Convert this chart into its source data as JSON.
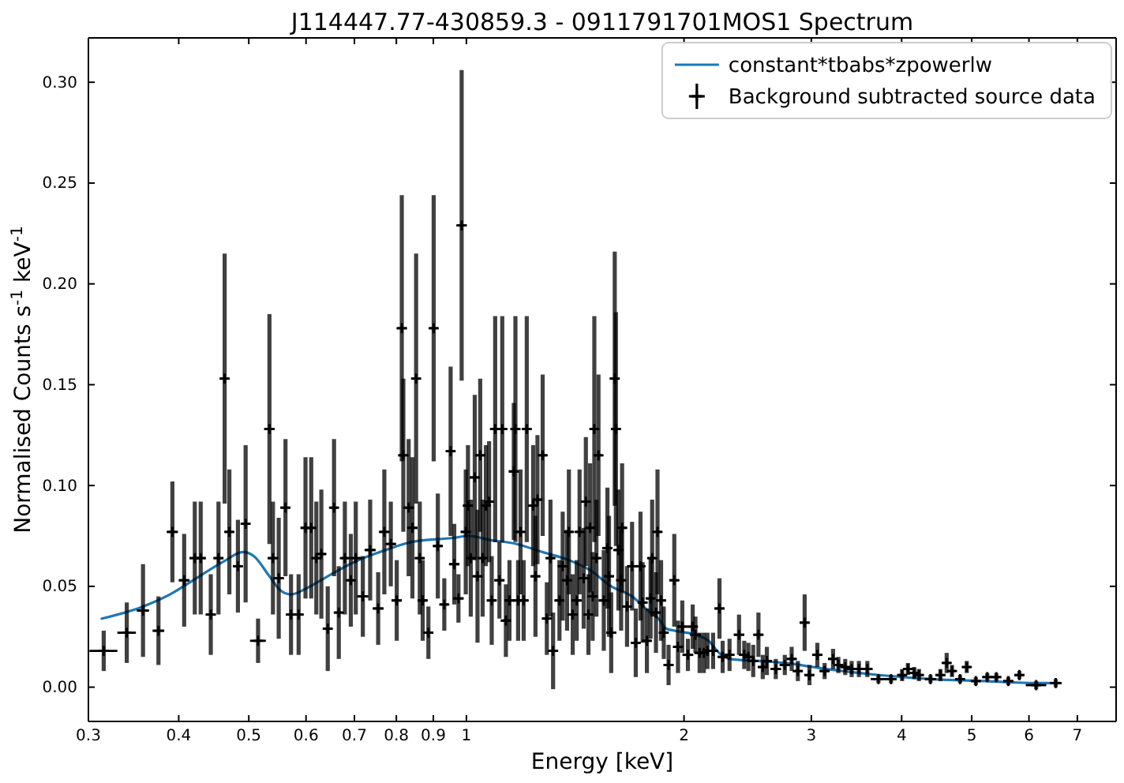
{
  "chart_data": {
    "type": "scatter",
    "title": "J114447.77-430859.3 - 0911791701MOS1 Spectrum",
    "xlabel": "Energy [keV]",
    "ylabel": "Normalised Counts s$^{-1}$ keV$^{-1}$",
    "log": "x",
    "xlim": [
      0.3,
      7.92
    ],
    "xticks": [
      0.3,
      0.4,
      0.5,
      0.6,
      0.7,
      0.8,
      0.9,
      1,
      2,
      3,
      4,
      5,
      6,
      7
    ],
    "ylim": [
      -0.017,
      0.322
    ],
    "yticks": [
      {
        "value": 0,
        "label": "0.00"
      },
      0.05,
      {
        "value": 0.1,
        "label": "0.10"
      },
      0.15,
      {
        "value": 0.2,
        "label": "0.20"
      },
      0.25,
      {
        "value": 0.3,
        "label": "0.30"
      }
    ],
    "legend": "top right",
    "series": [
      {
        "name": "constant*tbabs*zpowerlw",
        "type": "line",
        "color": "#1f77b4",
        "marker": "none",
        "line_style": "solid",
        "x": [
          0.313,
          0.357,
          0.389,
          0.423,
          0.46,
          0.491,
          0.508,
          0.534,
          0.553,
          0.572,
          0.601,
          0.643,
          0.699,
          0.773,
          0.84,
          0.957,
          1.009,
          1.078,
          1.173,
          1.275,
          1.386,
          1.483,
          1.586,
          1.695,
          1.783,
          1.843,
          1.891,
          1.939,
          2.074,
          2.162,
          2.236,
          2.312,
          2.535,
          2.757,
          3.151,
          3.724,
          4.4,
          5.21,
          6.16,
          6.64
        ],
        "values": [
          0.034,
          0.04,
          0.046,
          0.054,
          0.062,
          0.067,
          0.065,
          0.055,
          0.048,
          0.046,
          0.049,
          0.055,
          0.062,
          0.068,
          0.072,
          0.074,
          0.075,
          0.073,
          0.071,
          0.067,
          0.063,
          0.058,
          0.05,
          0.045,
          0.038,
          0.034,
          0.029,
          0.028,
          0.026,
          0.023,
          0.017,
          0.014,
          0.013,
          0.012,
          0.009,
          0.006,
          0.004,
          0.003,
          0.002,
          0.002
        ]
      },
      {
        "name": "Background subtracted source data",
        "type": "scatter",
        "color": "#000000",
        "marker": "cross",
        "x": [
          0.315,
          0.339,
          0.357,
          0.375,
          0.392,
          0.407,
          0.421,
          0.429,
          0.443,
          0.454,
          0.463,
          0.47,
          0.483,
          0.495,
          0.515,
          0.534,
          0.54,
          0.55,
          0.562,
          0.572,
          0.586,
          0.599,
          0.61,
          0.62,
          0.63,
          0.643,
          0.656,
          0.666,
          0.679,
          0.692,
          0.703,
          0.719,
          0.736,
          0.755,
          0.77,
          0.786,
          0.801,
          0.814,
          0.818,
          0.832,
          0.842,
          0.852,
          0.862,
          0.87,
          0.886,
          0.901,
          0.913,
          0.932,
          0.951,
          0.962,
          0.975,
          0.985,
          0.998,
          1.005,
          1.014,
          1.027,
          1.036,
          1.045,
          1.053,
          1.064,
          1.075,
          1.084,
          1.096,
          1.111,
          1.121,
          1.134,
          1.147,
          1.163,
          1.169,
          1.179,
          1.188,
          1.2,
          1.212,
          1.237,
          1.246,
          1.254,
          1.275,
          1.292,
          1.307,
          1.318,
          1.345,
          1.359,
          1.378,
          1.386,
          1.403,
          1.421,
          1.434,
          1.453,
          1.463,
          1.475,
          1.483,
          1.495,
          1.503,
          1.513,
          1.523,
          1.549,
          1.567,
          1.575,
          1.586,
          1.604,
          1.61,
          1.623,
          1.637,
          1.642,
          1.668,
          1.695,
          1.715,
          1.741,
          1.753,
          1.777,
          1.798,
          1.807,
          1.829,
          1.838,
          1.859,
          1.875,
          1.904,
          1.939,
          1.962,
          1.989,
          2.025,
          2.056,
          2.074,
          2.102,
          2.13,
          2.155,
          2.194,
          2.239,
          2.262,
          2.312,
          2.383,
          2.423,
          2.455,
          2.493,
          2.535,
          2.57,
          2.604,
          2.679,
          2.757,
          2.818,
          2.874,
          2.937,
          2.982,
          3.058,
          3.13,
          3.215,
          3.27,
          3.342,
          3.411,
          3.491,
          3.586,
          3.715,
          3.867,
          4.006,
          4.081,
          4.164,
          4.227,
          4.385,
          4.526,
          4.617,
          4.696,
          4.818,
          4.922,
          5.066,
          5.254,
          5.408,
          5.618,
          5.82,
          6.14,
          6.534
        ],
        "values": [
          0.018,
          0.027,
          0.038,
          0.028,
          0.077,
          0.053,
          0.064,
          0.064,
          0.036,
          0.064,
          0.153,
          0.077,
          0.06,
          0.081,
          0.023,
          0.128,
          0.064,
          0.054,
          0.089,
          0.036,
          0.036,
          0.079,
          0.079,
          0.064,
          0.066,
          0.029,
          0.089,
          0.037,
          0.064,
          0.053,
          0.064,
          0.045,
          0.068,
          0.039,
          0.077,
          0.071,
          0.043,
          0.178,
          0.115,
          0.089,
          0.079,
          0.153,
          0.064,
          0.043,
          0.027,
          0.178,
          0.07,
          0.041,
          0.117,
          0.061,
          0.044,
          0.229,
          0.077,
          0.09,
          0.064,
          0.104,
          0.055,
          0.115,
          0.064,
          0.09,
          0.092,
          0.043,
          0.128,
          0.053,
          0.128,
          0.033,
          0.043,
          0.107,
          0.128,
          0.043,
          0.077,
          0.043,
          0.128,
          0.09,
          0.055,
          0.093,
          0.115,
          0.034,
          0.064,
          0.018,
          0.043,
          0.06,
          0.053,
          0.077,
          0.036,
          0.043,
          0.077,
          0.054,
          0.092,
          0.036,
          0.079,
          0.045,
          0.128,
          0.064,
          0.115,
          0.043,
          0.069,
          0.055,
          0.027,
          0.153,
          0.128,
          0.068,
          0.053,
          0.079,
          0.04,
          0.06,
          0.022,
          0.06,
          0.042,
          0.023,
          0.044,
          0.064,
          0.037,
          0.077,
          0.043,
          0.027,
          0.011,
          0.053,
          0.02,
          0.03,
          0.016,
          0.03,
          0.026,
          0.017,
          0.017,
          0.018,
          0.018,
          0.039,
          0.015,
          0.016,
          0.026,
          0.016,
          0.015,
          0.013,
          0.026,
          0.01,
          0.013,
          0.009,
          0.011,
          0.014,
          0.008,
          0.032,
          0.006,
          0.016,
          0.008,
          0.014,
          0.011,
          0.01,
          0.009,
          0.009,
          0.009,
          0.004,
          0.004,
          0.006,
          0.009,
          0.007,
          0.006,
          0.004,
          0.006,
          0.012,
          0.008,
          0.004,
          0.01,
          0.003,
          0.005,
          0.005,
          0.003,
          0.006,
          0.001,
          0.002
        ],
        "errors": [
          0.01,
          0.015,
          0.023,
          0.017,
          0.025,
          0.023,
          0.028,
          0.028,
          0.02,
          0.028,
          0.062,
          0.031,
          0.023,
          0.039,
          0.011,
          0.057,
          0.028,
          0.03,
          0.034,
          0.02,
          0.02,
          0.035,
          0.035,
          0.028,
          0.032,
          0.021,
          0.034,
          0.023,
          0.028,
          0.023,
          0.028,
          0.02,
          0.025,
          0.018,
          0.031,
          0.021,
          0.02,
          0.066,
          0.038,
          0.034,
          0.035,
          0.062,
          0.028,
          0.02,
          0.013,
          0.066,
          0.026,
          0.013,
          0.042,
          0.02,
          0.012,
          0.077,
          0.031,
          0.03,
          0.029,
          0.041,
          0.033,
          0.038,
          0.029,
          0.03,
          0.03,
          0.022,
          0.056,
          0.019,
          0.056,
          0.018,
          0.02,
          0.034,
          0.056,
          0.02,
          0.031,
          0.02,
          0.056,
          0.03,
          0.03,
          0.032,
          0.04,
          0.018,
          0.029,
          0.019,
          0.02,
          0.027,
          0.025,
          0.031,
          0.02,
          0.02,
          0.031,
          0.025,
          0.032,
          0.02,
          0.032,
          0.022,
          0.056,
          0.029,
          0.04,
          0.025,
          0.03,
          0.03,
          0.02,
          0.063,
          0.058,
          0.03,
          0.025,
          0.032,
          0.02,
          0.022,
          0.017,
          0.027,
          0.02,
          0.016,
          0.02,
          0.029,
          0.02,
          0.031,
          0.02,
          0.013,
          0.01,
          0.023,
          0.013,
          0.013,
          0.008,
          0.011,
          0.009,
          0.01,
          0.01,
          0.009,
          0.009,
          0.015,
          0.008,
          0.008,
          0.01,
          0.007,
          0.007,
          0.008,
          0.011,
          0.006,
          0.007,
          0.005,
          0.005,
          0.006,
          0.005,
          0.014,
          0.005,
          0.006,
          0.004,
          0.005,
          0.004,
          0.004,
          0.004,
          0.004,
          0.004,
          0.002,
          0.002,
          0.003,
          0.003,
          0.003,
          0.003,
          0.002,
          0.003,
          0.005,
          0.003,
          0.002,
          0.003,
          0.002,
          0.002,
          0.002,
          0.002,
          0.002,
          0.002,
          0.002
        ],
        "xerrors": [
          0.014,
          0.01,
          0.007,
          0.007,
          0.007,
          0.007,
          0.007,
          0.007,
          0.007,
          0.007,
          0.007,
          0.007,
          0.007,
          0.007,
          0.013,
          0.009,
          0.009,
          0.009,
          0.009,
          0.009,
          0.009,
          0.009,
          0.009,
          0.009,
          0.009,
          0.009,
          0.009,
          0.009,
          0.009,
          0.009,
          0.013,
          0.013,
          0.013,
          0.013,
          0.013,
          0.013,
          0.013,
          0.013,
          0.013,
          0.013,
          0.013,
          0.013,
          0.013,
          0.013,
          0.013,
          0.013,
          0.013,
          0.013,
          0.013,
          0.016,
          0.016,
          0.016,
          0.016,
          0.016,
          0.016,
          0.016,
          0.016,
          0.016,
          0.016,
          0.016,
          0.016,
          0.016,
          0.018,
          0.018,
          0.018,
          0.018,
          0.018,
          0.018,
          0.018,
          0.018,
          0.018,
          0.018,
          0.018,
          0.018,
          0.018,
          0.018,
          0.018,
          0.018,
          0.018,
          0.018,
          0.02,
          0.02,
          0.02,
          0.02,
          0.02,
          0.02,
          0.02,
          0.02,
          0.02,
          0.02,
          0.02,
          0.02,
          0.02,
          0.02,
          0.02,
          0.025,
          0.025,
          0.025,
          0.025,
          0.025,
          0.025,
          0.025,
          0.025,
          0.025,
          0.025,
          0.025,
          0.025,
          0.025,
          0.025,
          0.025,
          0.025,
          0.025,
          0.025,
          0.025,
          0.025,
          0.025,
          0.03,
          0.03,
          0.03,
          0.03,
          0.035,
          0.035,
          0.035,
          0.035,
          0.035,
          0.035,
          0.035,
          0.035,
          0.035,
          0.035,
          0.04,
          0.04,
          0.04,
          0.04,
          0.04,
          0.04,
          0.04,
          0.045,
          0.045,
          0.045,
          0.045,
          0.045,
          0.045,
          0.05,
          0.05,
          0.05,
          0.05,
          0.05,
          0.05,
          0.05,
          0.06,
          0.09,
          0.07,
          0.06,
          0.06,
          0.06,
          0.06,
          0.08,
          0.07,
          0.06,
          0.06,
          0.07,
          0.07,
          0.08,
          0.08,
          0.08,
          0.09,
          0.09,
          0.2,
          0.12
        ]
      }
    ]
  }
}
